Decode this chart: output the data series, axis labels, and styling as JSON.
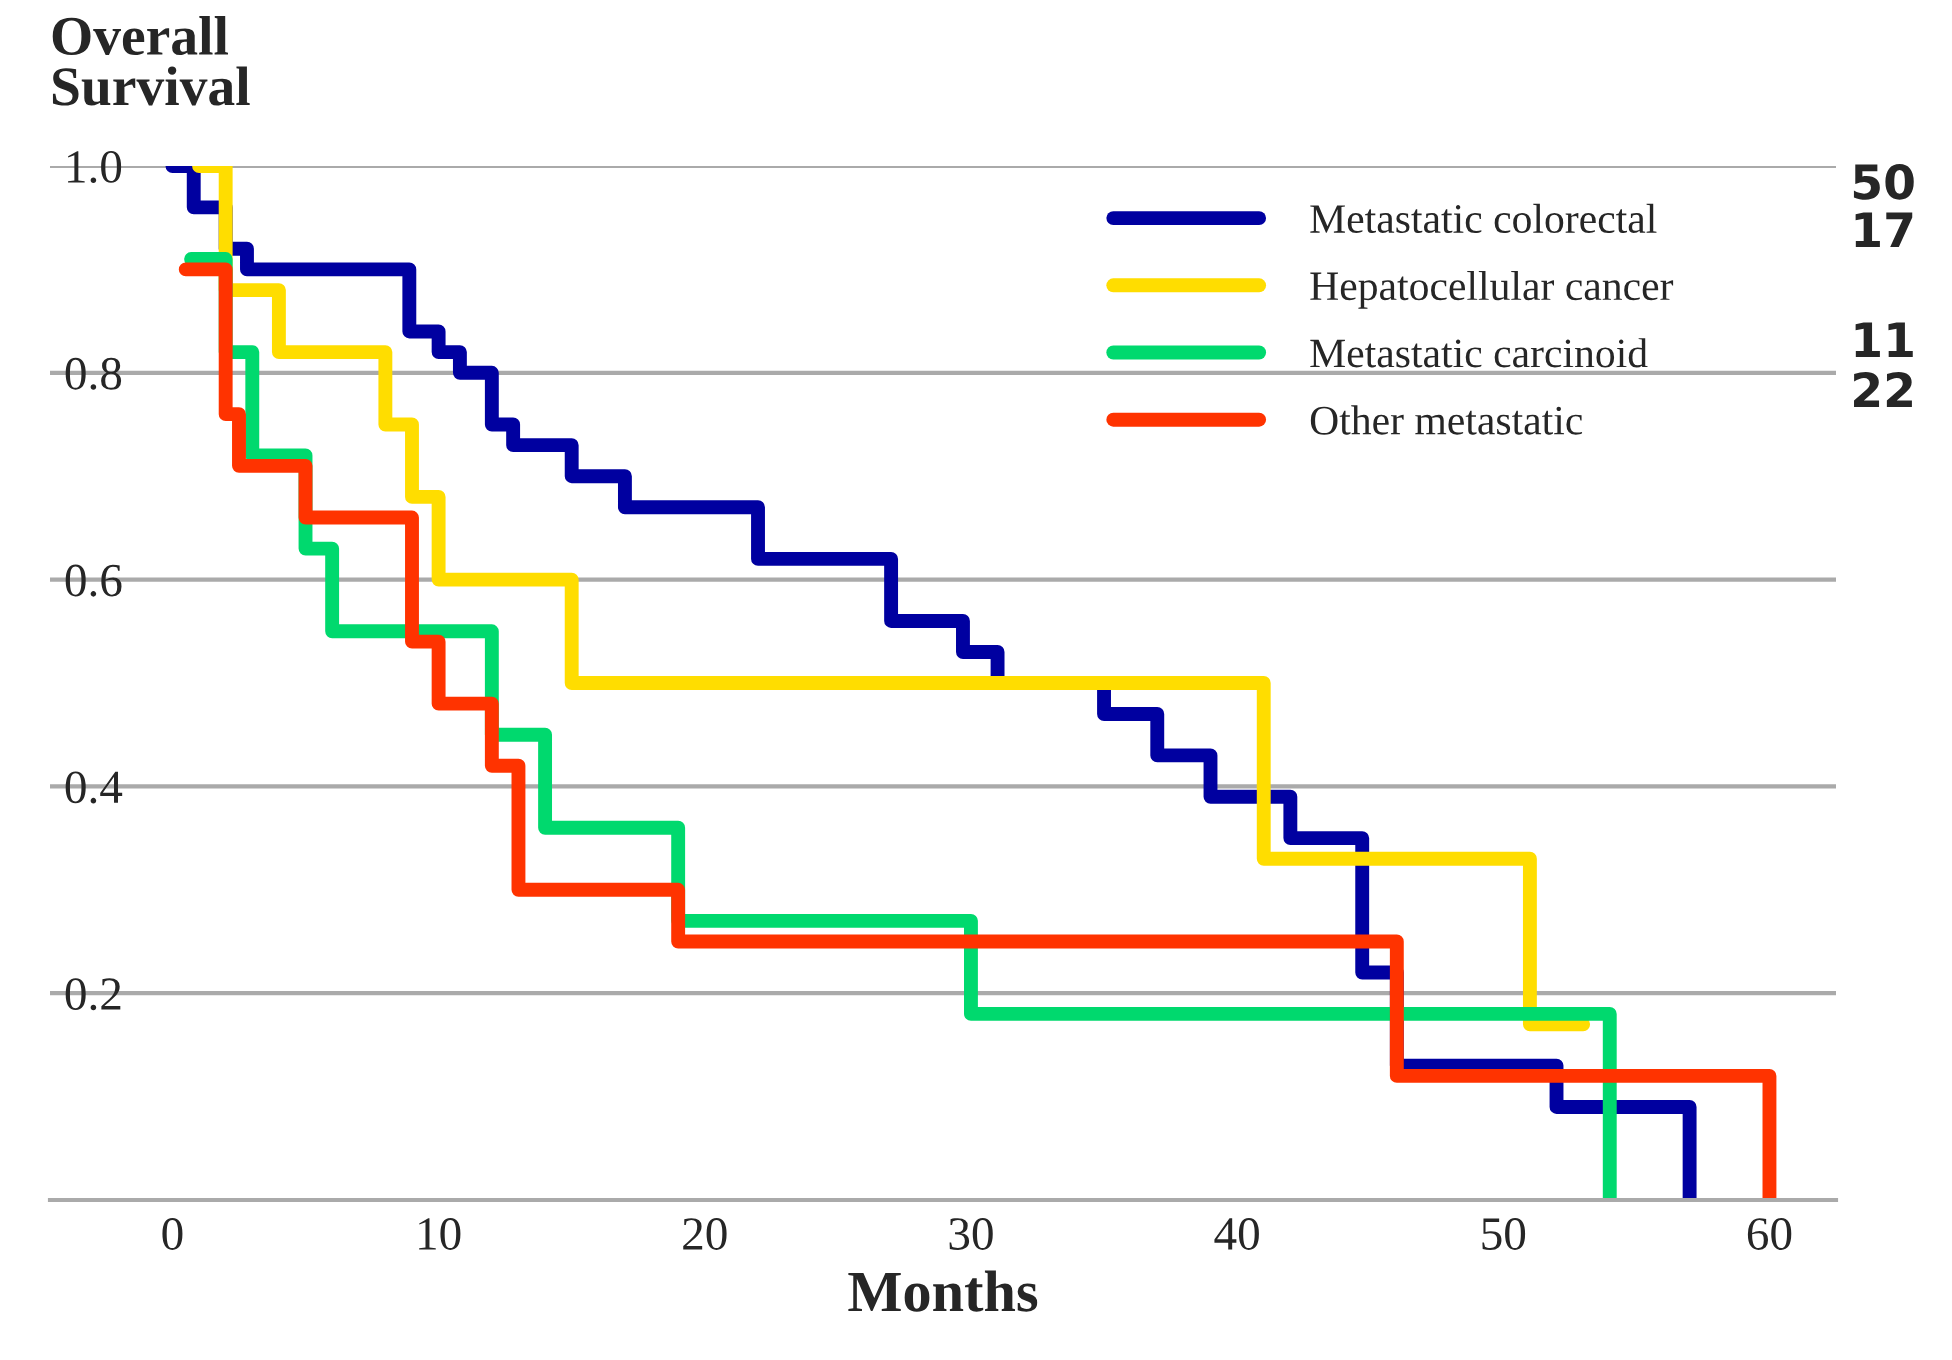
{
  "chart_data": {
    "type": "step",
    "xlabel": "Months",
    "ylabel": "Overall\nSurvival",
    "xlim": [
      -4.6,
      62.5
    ],
    "ylim": [
      0,
      1.0
    ],
    "xticks": [
      0,
      10,
      20,
      30,
      40,
      50,
      60
    ],
    "yticks": [
      {
        "value": 0.2,
        "label": "0.2"
      },
      {
        "value": 0.4,
        "label": "0.4"
      },
      {
        "value": 0.6,
        "label": "0.6"
      },
      {
        "value": 0.8,
        "label": "0.8"
      },
      {
        "value": 1.0,
        "label": "1.0"
      }
    ],
    "grid": "y",
    "legend": "top right",
    "line_style": "solid",
    "marker": "none",
    "annotations": [
      "50",
      "17",
      "11",
      "22"
    ],
    "series": [
      {
        "name": "Metastatic colorectal",
        "color": "#0000a0",
        "x": [
          0,
          0.8,
          2,
          2.8,
          8.9,
          10,
          10.8,
          12,
          12.8,
          15,
          17,
          22,
          27,
          29.7,
          31,
          35,
          37,
          39,
          42,
          44.7,
          46,
          52,
          57
        ],
        "values": [
          1.0,
          0.96,
          0.92,
          0.9,
          0.84,
          0.82,
          0.8,
          0.75,
          0.73,
          0.7,
          0.67,
          0.62,
          0.56,
          0.53,
          0.5,
          0.47,
          0.43,
          0.39,
          0.35,
          0.22,
          0.13,
          0.09,
          0.0
        ]
      },
      {
        "name": "Hepatocellular cancer",
        "color": "#ffdd00",
        "x": [
          1,
          2,
          4,
          8,
          9,
          10,
          15,
          41,
          51,
          53
        ],
        "values": [
          1.0,
          0.88,
          0.82,
          0.75,
          0.68,
          0.6,
          0.5,
          0.33,
          0.17,
          0.17
        ]
      },
      {
        "name": "Metastatic carcinoid",
        "color": "#00d96e",
        "x": [
          0.7,
          2,
          3,
          5,
          6,
          12,
          14,
          19,
          30,
          54
        ],
        "values": [
          0.91,
          0.82,
          0.72,
          0.63,
          0.55,
          0.45,
          0.36,
          0.27,
          0.18,
          0.0
        ]
      },
      {
        "name": "Other metastatic",
        "color": "#ff3300",
        "x": [
          0.5,
          2,
          2.5,
          5,
          9,
          10,
          12,
          13,
          19,
          46,
          60
        ],
        "values": [
          0.9,
          0.76,
          0.71,
          0.66,
          0.54,
          0.48,
          0.42,
          0.3,
          0.25,
          0.12,
          0.0
        ]
      }
    ]
  }
}
